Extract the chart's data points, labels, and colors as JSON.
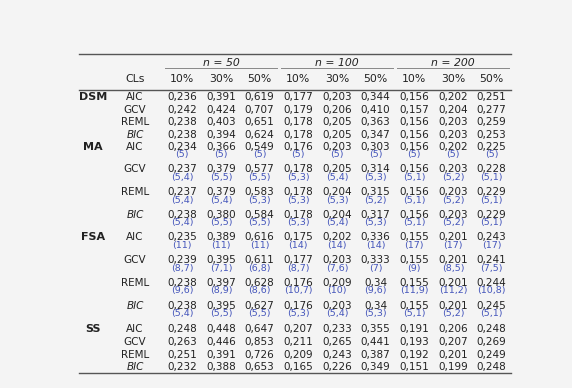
{
  "col_headers_n": [
    {
      "label": "n = 50",
      "cols": [
        0,
        1,
        2
      ]
    },
    {
      "label": "n = 100",
      "cols": [
        3,
        4,
        5
      ]
    },
    {
      "label": "n = 200",
      "cols": [
        6,
        7,
        8
      ]
    }
  ],
  "col_headers_pct": [
    "10%",
    "30%",
    "50%",
    "10%",
    "30%",
    "50%",
    "10%",
    "30%",
    "50%"
  ],
  "rows": [
    {
      "group": "DSM",
      "method": "AIC",
      "italic": false,
      "values": [
        "0,236",
        "0,391",
        "0,619",
        "0,177",
        "0,203",
        "0,344",
        "0,156",
        "0,202",
        "0,251"
      ],
      "sub": null
    },
    {
      "group": "",
      "method": "GCV",
      "italic": false,
      "values": [
        "0,242",
        "0,424",
        "0,707",
        "0,179",
        "0,206",
        "0,410",
        "0,157",
        "0,204",
        "0,277"
      ],
      "sub": null
    },
    {
      "group": "",
      "method": "REML",
      "italic": false,
      "values": [
        "0,238",
        "0,403",
        "0,651",
        "0,178",
        "0,205",
        "0,363",
        "0,156",
        "0,203",
        "0,259"
      ],
      "sub": null
    },
    {
      "group": "",
      "method": "BIC",
      "italic": true,
      "values": [
        "0,238",
        "0,394",
        "0,624",
        "0,178",
        "0,205",
        "0,347",
        "0,156",
        "0,203",
        "0,253"
      ],
      "sub": null
    },
    {
      "group": "MA",
      "method": "AIC",
      "italic": false,
      "values": [
        "0,234",
        "0,366",
        "0,549",
        "0,176",
        "0,203",
        "0,303",
        "0,156",
        "0,202",
        "0,225"
      ],
      "sub": [
        "(5)",
        "(5)",
        "(5)",
        "(5)",
        "(5)",
        "(5)",
        "(5)",
        "(5)",
        "(5)"
      ]
    },
    {
      "group": "",
      "method": "GCV",
      "italic": false,
      "values": [
        "0,237",
        "0,379",
        "0,577",
        "0,178",
        "0,205",
        "0,314",
        "0,156",
        "0,203",
        "0,228"
      ],
      "sub": [
        "(5,4)",
        "(5,5)",
        "(5,5)",
        "(5,3)",
        "(5,4)",
        "(5,3)",
        "(5,1)",
        "(5,2)",
        "(5,1)"
      ]
    },
    {
      "group": "",
      "method": "REML",
      "italic": false,
      "values": [
        "0,237",
        "0,379",
        "0,583",
        "0,178",
        "0,204",
        "0,315",
        "0,156",
        "0,203",
        "0,229"
      ],
      "sub": [
        "(5,4)",
        "(5,4)",
        "(5,3)",
        "(5,3)",
        "(5,3)",
        "(5,2)",
        "(5,1)",
        "(5,2)",
        "(5,1)"
      ]
    },
    {
      "group": "",
      "method": "BIC",
      "italic": true,
      "values": [
        "0,238",
        "0,380",
        "0,584",
        "0,178",
        "0,204",
        "0,317",
        "0,156",
        "0,203",
        "0,229"
      ],
      "sub": [
        "(5,4)",
        "(5,5)",
        "(5,5)",
        "(5,3)",
        "(5,4)",
        "(5,3)",
        "(5,1)",
        "(5,2)",
        "(5,1)"
      ]
    },
    {
      "group": "FSA",
      "method": "AIC",
      "italic": false,
      "values": [
        "0,235",
        "0,389",
        "0,616",
        "0,175",
        "0,202",
        "0,336",
        "0,155",
        "0,201",
        "0,243"
      ],
      "sub": [
        "(11)",
        "(11)",
        "(11)",
        "(14)",
        "(14)",
        "(14)",
        "(17)",
        "(17)",
        "(17)"
      ]
    },
    {
      "group": "",
      "method": "GCV",
      "italic": false,
      "values": [
        "0,239",
        "0,395",
        "0,611",
        "0,177",
        "0,203",
        "0,333",
        "0,155",
        "0,201",
        "0,241"
      ],
      "sub": [
        "(8,7)",
        "(7,1)",
        "(6,8)",
        "(8,7)",
        "(7,6)",
        "(7)",
        "(9)",
        "(8,5)",
        "(7,5)"
      ]
    },
    {
      "group": "",
      "method": "REML",
      "italic": false,
      "values": [
        "0,238",
        "0,397",
        "0,628",
        "0,176",
        "0,209",
        "0,34",
        "0,155",
        "0,201",
        "0,244"
      ],
      "sub": [
        "(9,6)",
        "(8,9)",
        "(8,6)",
        "(10,7)",
        "(10)",
        "(9,6)",
        "(11,9)",
        "(11,2)",
        "(10,8)"
      ]
    },
    {
      "group": "",
      "method": "BIC",
      "italic": true,
      "values": [
        "0,238",
        "0,395",
        "0,627",
        "0,176",
        "0,203",
        "0,34",
        "0,155",
        "0,201",
        "0,245"
      ],
      "sub": [
        "(5,4)",
        "(5,5)",
        "(5,5)",
        "(5,3)",
        "(5,4)",
        "(5,3)",
        "(5,1)",
        "(5,2)",
        "(5,1)"
      ]
    },
    {
      "group": "SS",
      "method": "AIC",
      "italic": false,
      "values": [
        "0,248",
        "0,448",
        "0,647",
        "0,207",
        "0,233",
        "0,355",
        "0,191",
        "0,206",
        "0,248"
      ],
      "sub": null
    },
    {
      "group": "",
      "method": "GCV",
      "italic": false,
      "values": [
        "0,263",
        "0,446",
        "0,853",
        "0,211",
        "0,265",
        "0,441",
        "0,193",
        "0,207",
        "0,269"
      ],
      "sub": null
    },
    {
      "group": "",
      "method": "REML",
      "italic": false,
      "values": [
        "0,251",
        "0,391",
        "0,726",
        "0,209",
        "0,243",
        "0,387",
        "0,192",
        "0,201",
        "0,249"
      ],
      "sub": null
    },
    {
      "group": "",
      "method": "BIC",
      "italic": true,
      "values": [
        "0,232",
        "0,388",
        "0,653",
        "0,165",
        "0,226",
        "0,349",
        "0,151",
        "0,199",
        "0,248"
      ],
      "sub": null
    }
  ],
  "blue_color": "#4455bb",
  "text_color": "#222222",
  "line_color": "#888888",
  "bg_color": "#f4f4f4",
  "font_size_data": 7.5,
  "font_size_header": 7.8,
  "font_size_group": 8.0,
  "font_size_sub": 6.8
}
